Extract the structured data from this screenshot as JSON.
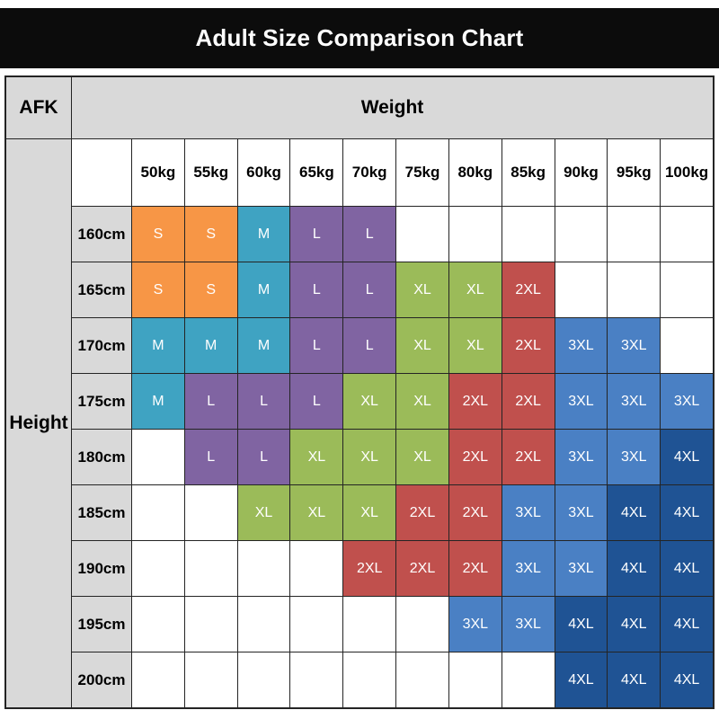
{
  "corner_label": "AFK",
  "chart_data": {
    "type": "heatmap",
    "title": "Adult Size Comparison Chart",
    "xlabel": "Weight",
    "ylabel": "Height",
    "x_categories": [
      "50kg",
      "55kg",
      "60kg",
      "65kg",
      "70kg",
      "75kg",
      "80kg",
      "85kg",
      "90kg",
      "95kg",
      "100kg"
    ],
    "y_categories": [
      "160cm",
      "165cm",
      "170cm",
      "175cm",
      "180cm",
      "185cm",
      "190cm",
      "195cm",
      "200cm"
    ],
    "values": [
      [
        "S",
        "S",
        "M",
        "L",
        "L",
        "",
        "",
        "",
        "",
        "",
        ""
      ],
      [
        "S",
        "S",
        "M",
        "L",
        "L",
        "XL",
        "XL",
        "2XL",
        "",
        "",
        ""
      ],
      [
        "M",
        "M",
        "M",
        "L",
        "L",
        "XL",
        "XL",
        "2XL",
        "3XL",
        "3XL",
        ""
      ],
      [
        "M",
        "L",
        "L",
        "L",
        "XL",
        "XL",
        "2XL",
        "2XL",
        "3XL",
        "3XL",
        "3XL"
      ],
      [
        "",
        "L",
        "L",
        "XL",
        "XL",
        "XL",
        "2XL",
        "2XL",
        "3XL",
        "3XL",
        "4XL"
      ],
      [
        "",
        "",
        "XL",
        "XL",
        "XL",
        "2XL",
        "2XL",
        "3XL",
        "3XL",
        "4XL",
        "4XL"
      ],
      [
        "",
        "",
        "",
        "",
        "2XL",
        "2XL",
        "2XL",
        "3XL",
        "3XL",
        "4XL",
        "4XL"
      ],
      [
        "",
        "",
        "",
        "",
        "",
        "",
        "3XL",
        "3XL",
        "4XL",
        "4XL",
        "4XL"
      ],
      [
        "",
        "",
        "",
        "",
        "",
        "",
        "",
        "",
        "4XL",
        "4XL",
        "4XL"
      ]
    ],
    "size_colors": {
      "S": "#F79646",
      "M": "#3FA3C2",
      "L": "#8064A2",
      "XL": "#9BBB59",
      "2XL": "#C0504D",
      "3XL": "#4A80C4",
      "4XL": "#1F5394"
    },
    "legend_position": "none",
    "grid": true
  }
}
